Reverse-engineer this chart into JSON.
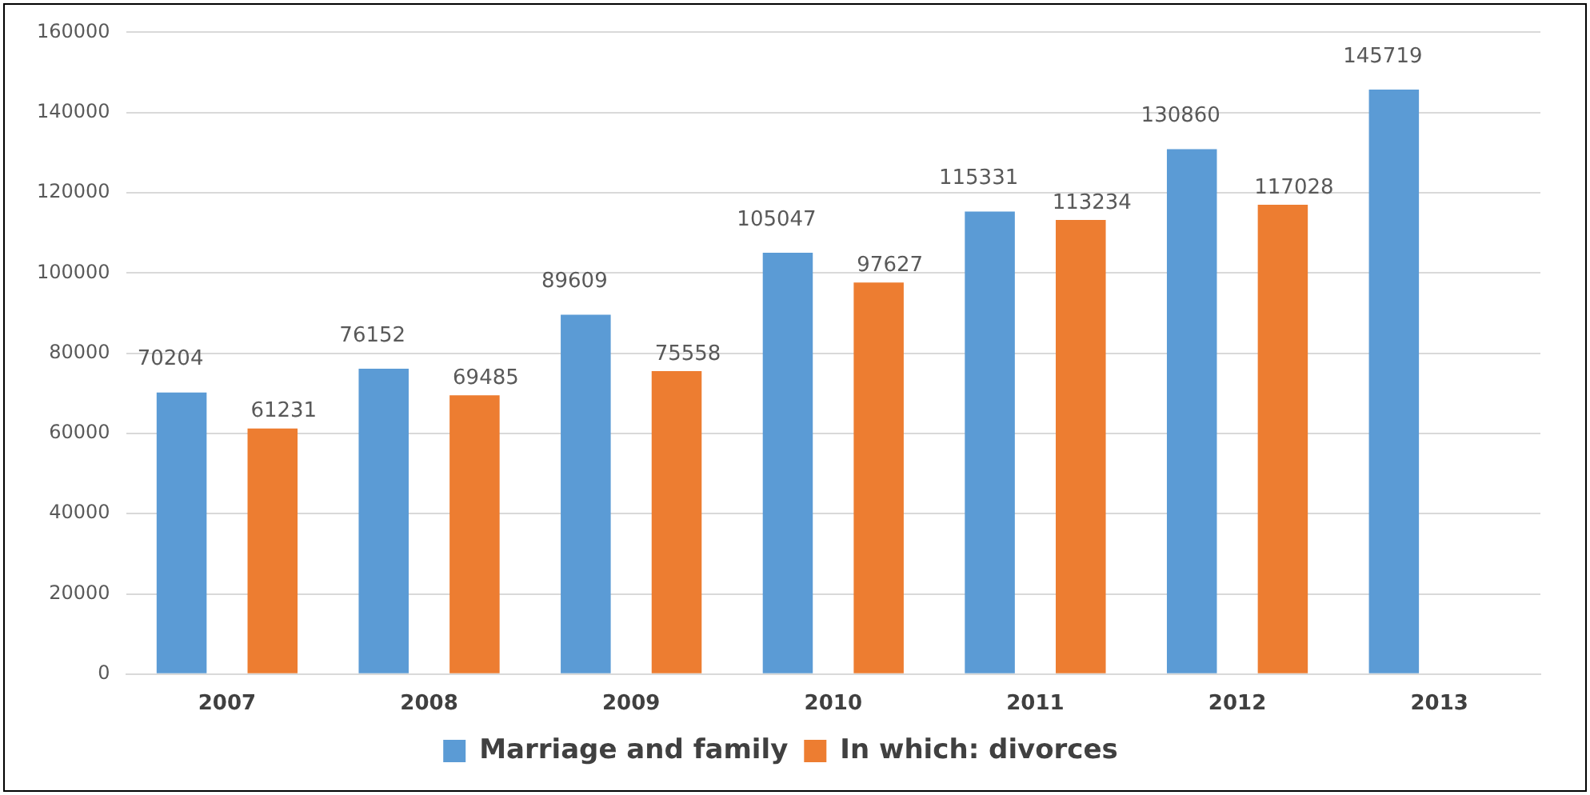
{
  "chart_data": {
    "type": "bar",
    "categories": [
      "2007",
      "2008",
      "2009",
      "2010",
      "2011",
      "2012",
      "2013"
    ],
    "series": [
      {
        "name": "Marriage and family",
        "color": "#5b9bd5",
        "values": [
          70204,
          76152,
          89609,
          105047,
          115331,
          130860,
          145719
        ]
      },
      {
        "name": "In which: divorces",
        "color": "#ed7d31",
        "values": [
          61231,
          69485,
          75558,
          97627,
          113234,
          117028,
          null
        ]
      }
    ],
    "ylim": [
      0,
      160000
    ],
    "yticks": [
      0,
      20000,
      40000,
      60000,
      80000,
      100000,
      120000,
      140000,
      160000
    ],
    "grid": "y",
    "legend": "bottom",
    "data_labels": true
  }
}
